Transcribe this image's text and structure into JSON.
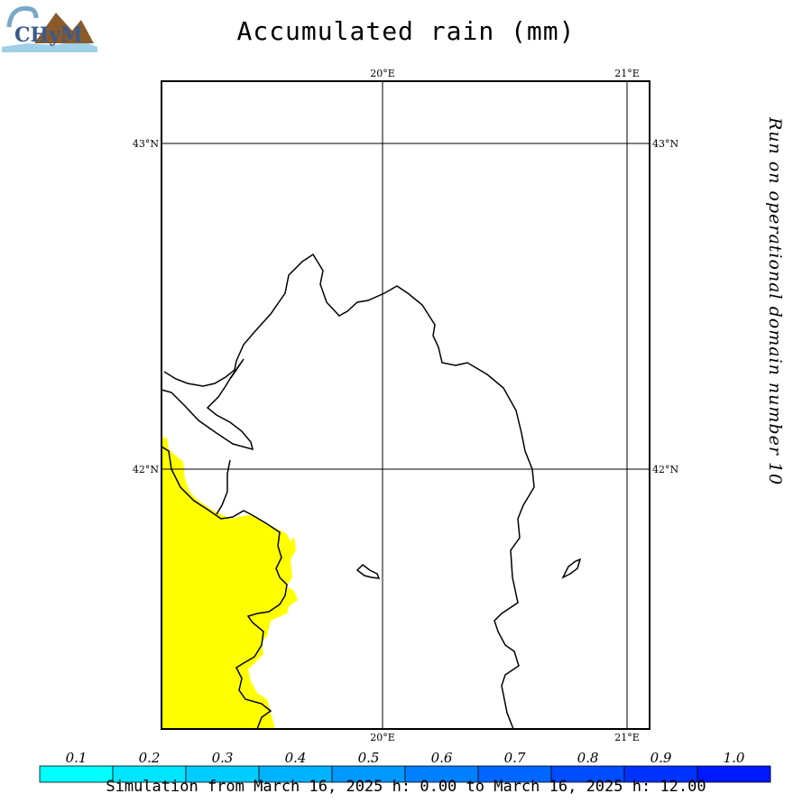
{
  "title": "Accumulated rain (mm)",
  "side_text": "Run on operational domain number 10",
  "footer": "Simulation from March 16, 2025 h: 0.00 to March 16, 2025 h: 12.00",
  "logo": {
    "text": "CHyM"
  },
  "axes": {
    "lon_top": [
      "20°E",
      "21°E"
    ],
    "lon_bottom": [
      "20°E",
      "21°E"
    ],
    "lat_left": [
      "43°N",
      "42°N"
    ],
    "lat_right": [
      "43°N",
      "42°N"
    ]
  },
  "colorbar": {
    "labels": [
      "0.1",
      "0.2",
      "0.3",
      "0.4",
      "0.5",
      "0.6",
      "0.7",
      "0.8",
      "0.9",
      "1.0"
    ],
    "colors": [
      "#00ffff",
      "#00e5ff",
      "#00ccff",
      "#00b2ff",
      "#0099ff",
      "#007fff",
      "#0066ff",
      "#004cff",
      "#0033ff",
      "#0019ff"
    ]
  },
  "rain_fill_color": "#ffff00"
}
